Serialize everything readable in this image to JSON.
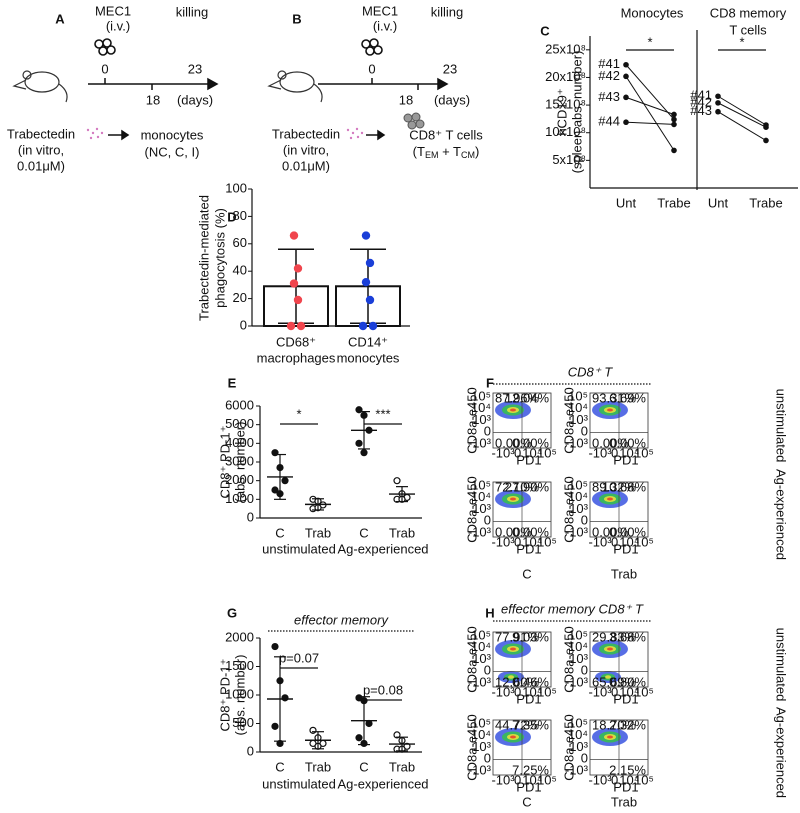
{
  "panel_labels": [
    "A",
    "B",
    "C",
    "D",
    "E",
    "F",
    "G",
    "H"
  ],
  "diagram_a": {
    "virus": "MEC1",
    "route": "(i.v.)",
    "day0": "0",
    "day18": "18",
    "killing": "killing",
    "day23": "23",
    "unit": "(days)",
    "drug": "Trabectedin",
    "conditions": [
      "(in vitro,",
      "0.01μM)"
    ],
    "target": [
      "monocytes",
      "(NC, C, I)"
    ]
  },
  "diagram_b": {
    "virus": "MEC1",
    "route": "(i.v.)",
    "day0": "0",
    "day18": "18",
    "killing": "killing",
    "day23": "23",
    "unit": "(days)",
    "drug": "Trabectedin",
    "conditions": [
      "(in vitro,",
      "0.01μM)"
    ],
    "target": "CD8⁺ T cells",
    "target_subtypes": [
      "(T",
      "EM",
      " + T",
      "CM",
      ")"
    ]
  },
  "chart_data": [
    {
      "type": "line",
      "title": "Monocytes",
      "y_label": [
        "hCD19⁺",
        "(spleen abs. number)"
      ],
      "categories": [
        "Unt",
        "Trabe"
      ],
      "ylim": [
        0,
        2750000000
      ],
      "yticks": [
        {
          "value": 500000000,
          "label": "5x10⁸"
        },
        {
          "value": 1000000000,
          "label": "10x10⁸"
        },
        {
          "value": 1500000000,
          "label": "15x10⁸"
        },
        {
          "value": 2000000000,
          "label": "20x10⁸"
        },
        {
          "value": 2500000000,
          "label": "25x10⁸"
        }
      ],
      "series": [
        {
          "name": "#41",
          "values": [
            2230000000,
            1240000000
          ]
        },
        {
          "name": "#42",
          "values": [
            2020000000,
            680000000
          ]
        },
        {
          "name": "#43",
          "values": [
            1640000000,
            1330000000
          ]
        },
        {
          "name": "#44",
          "values": [
            1190000000,
            1150000000
          ]
        }
      ],
      "annotation": "*"
    },
    {
      "type": "line",
      "title": [
        "CD8 memory",
        "T cells"
      ],
      "categories": [
        "Unt",
        "Trabe"
      ],
      "ylim": [
        0,
        2750000000
      ],
      "series": [
        {
          "name": "#41",
          "values": [
            1660000000,
            1140000000
          ]
        },
        {
          "name": "#42",
          "values": [
            1540000000,
            1100000000
          ]
        },
        {
          "name": "#43",
          "values": [
            1380000000,
            860000000
          ]
        }
      ],
      "annotation": "*"
    },
    {
      "type": "bar",
      "y_label": [
        "Trabectedin-mediated",
        "phagocytosis (%)"
      ],
      "categories": [
        [
          "CD68⁺",
          "macrophages"
        ],
        [
          "CD14⁺",
          "monocytes"
        ]
      ],
      "values": [
        29,
        29
      ],
      "errors": [
        27,
        27
      ],
      "color": "#ffffff",
      "points": [
        {
          "color": "#f0454d",
          "values": [
            66,
            42,
            31,
            19,
            0,
            0
          ]
        },
        {
          "color": "#1a3fd8",
          "values": [
            66,
            46,
            32,
            19,
            0,
            0
          ]
        }
      ],
      "ylim": [
        0,
        100
      ],
      "yticks": [
        0,
        20,
        40,
        60,
        80,
        100
      ]
    },
    {
      "type": "dot",
      "y_label": [
        "CD8⁺ PD-1⁺",
        "(abs. number)"
      ],
      "categories": [
        "C",
        "Trab",
        "C",
        "Trab"
      ],
      "groups": [
        "unstimulated",
        "Ag-experienced"
      ],
      "markers": [
        "filled",
        "open",
        "filled",
        "open"
      ],
      "points": [
        [
          3500,
          2700,
          2000,
          1500,
          1300
        ],
        [
          1000,
          900,
          700,
          500,
          550
        ],
        [
          5800,
          5500,
          4700,
          4000,
          3500
        ],
        [
          2000,
          1300,
          1100,
          1000,
          1000
        ]
      ],
      "means": [
        2200,
        730,
        4700,
        1280
      ],
      "sd": [
        1200,
        300,
        1000,
        400
      ],
      "group_annotations": [
        "*",
        "***"
      ],
      "ylim": [
        0,
        6000
      ],
      "yticks": [
        0,
        1000,
        2000,
        3000,
        4000,
        5000,
        6000
      ]
    },
    {
      "type": "dot",
      "title": "effector memory",
      "y_label": [
        "CD8⁺ PD-1⁺",
        "(abs. number)"
      ],
      "categories": [
        "C",
        "Trab",
        "C",
        "Trab"
      ],
      "groups": [
        "unstimulated",
        "Ag-experienced"
      ],
      "markers": [
        "filled",
        "open",
        "filled",
        "open"
      ],
      "points": [
        [
          1850,
          1250,
          950,
          450,
          150
        ],
        [
          380,
          250,
          150,
          150,
          100
        ],
        [
          950,
          900,
          500,
          250,
          150
        ],
        [
          300,
          200,
          100,
          50,
          50
        ]
      ],
      "means": [
        930,
        206,
        550,
        140
      ],
      "sd": [
        740,
        150,
        420,
        120
      ],
      "group_annotations": [
        "p=0.07",
        "p=0.08"
      ],
      "ylim": [
        0,
        2000
      ],
      "yticks": [
        0,
        500,
        1000,
        1500,
        2000
      ]
    }
  ],
  "flow_axes": {
    "y_label": "CD8a-e450",
    "x_label": "PD1",
    "y_ticks": [
      "10⁵",
      "10⁴",
      "10³",
      "0",
      "-10³"
    ],
    "x_ticks": [
      "-10³",
      "0",
      "10⁴",
      "10⁵"
    ]
  },
  "flow_f": {
    "title": "CD8⁺ T",
    "rows": [
      "unstimulated",
      "Ag-experienced"
    ],
    "columns": [
      "C",
      "Trab"
    ],
    "plots": [
      [
        "87.96%",
        "12.04%",
        "0.00%",
        "0.00%"
      ],
      [
        "93.31%",
        "6.69%",
        "0.00%",
        "0.00%"
      ],
      [
        "72.10%",
        "27.90%",
        "0.00%",
        "0.00%"
      ],
      [
        "89.32%",
        "10.68%",
        "0.00%",
        "0.00%"
      ]
    ]
  },
  "flow_h": {
    "title": "effector memory CD8⁺ T",
    "rows": [
      "unstimulated",
      "Ag-experienced"
    ],
    "columns": [
      "C",
      "Trab"
    ],
    "plots": [
      [
        "77.91%",
        "9.03%",
        "12.60%",
        "0.46%"
      ],
      [
        "29.83%",
        "3.68%",
        "65.69%",
        "0.80%"
      ],
      [
        "44.72%",
        "7.35%",
        null,
        "7.25%"
      ],
      [
        "18.70%",
        "2.32%",
        null,
        "2.15%"
      ]
    ]
  }
}
